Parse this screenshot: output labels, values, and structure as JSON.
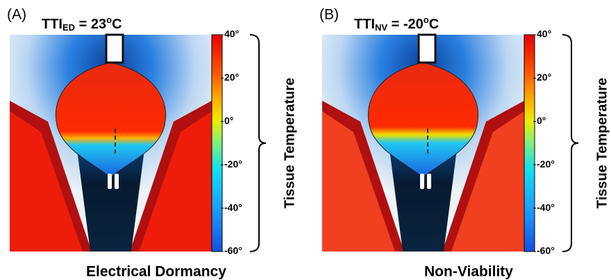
{
  "colorbar": {
    "lim": [
      -60,
      40
    ],
    "ticks": [
      {
        "value": 40,
        "label": "40°"
      },
      {
        "value": 20,
        "label": "20°"
      },
      {
        "value": 0,
        "label": "0°"
      },
      {
        "value": -20,
        "label": "-20°"
      },
      {
        "value": -40,
        "label": "-40°"
      },
      {
        "value": -60,
        "label": "-60°"
      }
    ],
    "label": "Tissue Temperature"
  },
  "panels": [
    {
      "letter": "(A)",
      "title": {
        "main": "TTI",
        "sub": "ED",
        "rest": " = 23",
        "sup": "o",
        "unit": "C"
      },
      "caption": "Electrical Dormancy"
    },
    {
      "letter": "(B)",
      "title": {
        "main": "TTI",
        "sub": "NV",
        "rest": " = -20",
        "sup": "o",
        "unit": "C"
      },
      "caption": "Non-Viability"
    }
  ]
}
